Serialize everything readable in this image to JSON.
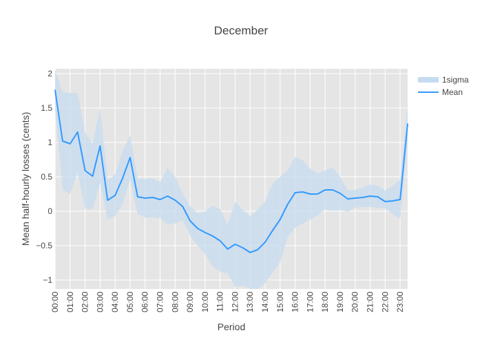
{
  "chart_data": {
    "type": "line",
    "title": "December",
    "xlabel": "Period",
    "ylabel": "Mean half-hourly losses (cents)",
    "x": [
      "00:00",
      "00:30",
      "01:00",
      "01:30",
      "02:00",
      "02:30",
      "03:00",
      "03:30",
      "04:00",
      "04:30",
      "05:00",
      "05:30",
      "06:00",
      "06:30",
      "07:00",
      "07:30",
      "08:00",
      "08:30",
      "09:00",
      "09:30",
      "10:00",
      "10:30",
      "11:00",
      "11:30",
      "12:00",
      "12:30",
      "13:00",
      "13:30",
      "14:00",
      "14:30",
      "15:00",
      "15:30",
      "16:00",
      "16:30",
      "17:00",
      "17:30",
      "18:00",
      "18:30",
      "19:00",
      "19:30",
      "20:00",
      "20:30",
      "21:00",
      "21:30",
      "22:00",
      "22:30",
      "23:00",
      "23:30"
    ],
    "x_tick_labels": [
      "00:00",
      "01:00",
      "02:00",
      "03:00",
      "04:00",
      "05:00",
      "06:00",
      "07:00",
      "08:00",
      "09:00",
      "10:00",
      "11:00",
      "12:00",
      "13:00",
      "14:00",
      "15:00",
      "16:00",
      "17:00",
      "18:00",
      "19:00",
      "20:00",
      "21:00",
      "22:00",
      "23:00"
    ],
    "ylim": [
      -1.13,
      2.07
    ],
    "y_ticks": [
      -1,
      -0.5,
      0,
      0.5,
      1,
      1.5,
      2
    ],
    "y_tick_labels": [
      "−1",
      "−0.5",
      "0",
      "0.5",
      "1",
      "1.5",
      "2"
    ],
    "grid": true,
    "legend_position": "top-right",
    "colors": {
      "mean": "#3399ff",
      "band": "#c6dbef",
      "plot_bg": "#e5e5e5",
      "grid": "#ffffff"
    },
    "series": [
      {
        "name": "Mean",
        "values": [
          1.76,
          1.02,
          0.98,
          1.15,
          0.59,
          0.51,
          0.95,
          0.16,
          0.23,
          0.48,
          0.78,
          0.21,
          0.19,
          0.2,
          0.17,
          0.22,
          0.16,
          0.07,
          -0.14,
          -0.25,
          -0.31,
          -0.36,
          -0.43,
          -0.55,
          -0.48,
          -0.53,
          -0.6,
          -0.56,
          -0.45,
          -0.28,
          -0.12,
          0.1,
          0.27,
          0.28,
          0.25,
          0.25,
          0.31,
          0.31,
          0.26,
          0.18,
          0.19,
          0.2,
          0.22,
          0.21,
          0.14,
          0.15,
          0.17,
          1.27
        ]
      },
      {
        "name": "1sigma",
        "upper": [
          2.05,
          1.73,
          1.72,
          1.72,
          1.15,
          0.98,
          1.5,
          0.45,
          0.53,
          0.87,
          1.1,
          0.47,
          0.47,
          0.48,
          0.43,
          0.63,
          0.5,
          0.26,
          0.07,
          -0.03,
          0.0,
          0.08,
          0.03,
          -0.2,
          0.14,
          0.02,
          -0.07,
          0.02,
          0.14,
          0.4,
          0.5,
          0.59,
          0.79,
          0.74,
          0.62,
          0.55,
          0.59,
          0.64,
          0.5,
          0.31,
          0.31,
          0.34,
          0.39,
          0.37,
          0.3,
          0.37,
          0.46,
          1.53
        ],
        "lower": [
          1.47,
          0.32,
          0.25,
          0.57,
          0.04,
          0.03,
          0.41,
          -0.12,
          -0.07,
          0.1,
          0.46,
          -0.04,
          -0.09,
          -0.09,
          -0.1,
          -0.19,
          -0.18,
          -0.13,
          -0.35,
          -0.5,
          -0.62,
          -0.8,
          -0.88,
          -0.9,
          -1.1,
          -1.08,
          -1.13,
          -1.13,
          -1.05,
          -0.89,
          -0.74,
          -0.38,
          -0.24,
          -0.18,
          -0.12,
          -0.06,
          0.03,
          0.01,
          0.02,
          -0.01,
          0.05,
          0.06,
          0.06,
          0.05,
          0.04,
          -0.04,
          -0.11,
          1.0
        ]
      }
    ]
  }
}
